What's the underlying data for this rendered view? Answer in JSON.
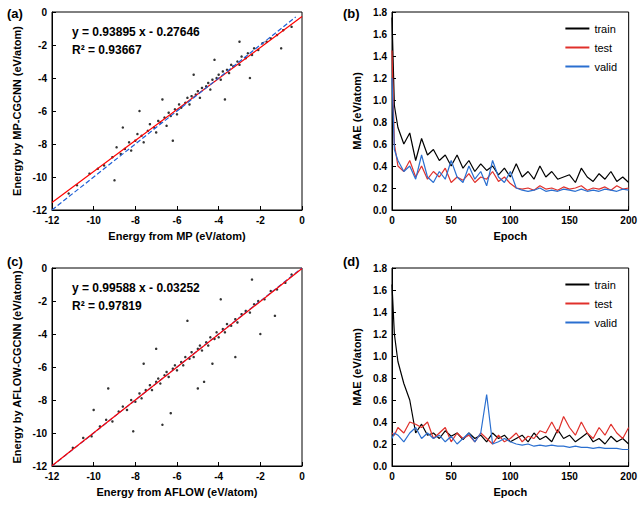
{
  "chart_data": [
    {
      "type": "scatter",
      "title": "(a)",
      "annotations": [
        "y = 0.93895 x - 0.27646",
        "R² = 0.93667"
      ],
      "x_label": "Energy from MP (eV/atom)",
      "y_label": "Energy by MP-CGCNN (eV/atom)",
      "xlim": [
        -12,
        0
      ],
      "ylim": [
        -12,
        0
      ],
      "xticks": [
        -12,
        -10,
        -8,
        -6,
        -4,
        -2,
        0
      ],
      "yticks": [
        -12,
        -10,
        -8,
        -6,
        -4,
        -2,
        0
      ],
      "grid": false,
      "series": [
        {
          "type": "scatter",
          "color": "#000000",
          "marker": "circle",
          "x": [
            -10.2,
            -9.8,
            -9.5,
            -9.1,
            -8.9,
            -8.7,
            -8.5,
            -8.3,
            -8.2,
            -8.0,
            -7.9,
            -7.7,
            -7.6,
            -7.4,
            -7.3,
            -7.1,
            -7.0,
            -6.9,
            -6.8,
            -6.6,
            -6.5,
            -6.4,
            -6.3,
            -6.1,
            -6.0,
            -5.9,
            -5.8,
            -5.6,
            -5.5,
            -5.4,
            -5.3,
            -5.1,
            -5.0,
            -4.9,
            -4.8,
            -4.6,
            -4.5,
            -4.4,
            -4.3,
            -4.1,
            -4.0,
            -3.9,
            -3.8,
            -3.6,
            -3.5,
            -3.4,
            -3.3,
            -3.1,
            -3.0,
            -2.9,
            -2.7,
            -2.6,
            -2.4,
            -2.3,
            -2.1,
            -1.9,
            -1.7,
            -1.5,
            -1.2,
            -0.9,
            -0.5,
            -9.0,
            -7.8,
            -6.2,
            -5.2,
            -3.7,
            -2.5,
            -4.2,
            -8.6,
            -10.8,
            -11.2,
            -1.0,
            -6.7,
            -3.0
          ],
          "values": [
            -9.8,
            -9.5,
            -9.3,
            -8.8,
            -8.2,
            -8.6,
            -8.3,
            -7.9,
            -8.4,
            -7.8,
            -7.4,
            -7.5,
            -7.9,
            -7.2,
            -6.8,
            -7.0,
            -7.3,
            -6.6,
            -6.7,
            -6.4,
            -6.9,
            -6.1,
            -6.3,
            -5.9,
            -6.2,
            -5.6,
            -5.8,
            -5.5,
            -5.2,
            -5.6,
            -5.1,
            -5.0,
            -4.8,
            -5.2,
            -4.6,
            -4.5,
            -4.3,
            -4.7,
            -4.1,
            -4.0,
            -3.8,
            -4.1,
            -3.6,
            -3.5,
            -3.7,
            -3.2,
            -3.3,
            -3.0,
            -3.2,
            -2.7,
            -2.8,
            -2.5,
            -2.6,
            -2.2,
            -2.3,
            -1.9,
            -1.8,
            -1.6,
            -1.4,
            -1.1,
            -0.9,
            -10.2,
            -6.0,
            -7.8,
            -3.8,
            -5.3,
            -4.0,
            -2.9,
            -7.0,
            -10.5,
            -11.0,
            -2.2,
            -5.3,
            -1.8
          ]
        },
        {
          "type": "line",
          "color": "#ff0000",
          "line_style": "solid",
          "x": [
            -12,
            0
          ],
          "values": [
            -11.544,
            -0.276
          ]
        },
        {
          "type": "line",
          "color": "#1f5fd6",
          "line_style": "dashed",
          "x": [
            -12,
            -0.3
          ],
          "values": [
            -12,
            -0.3
          ]
        }
      ]
    },
    {
      "type": "line",
      "title": "(b)",
      "x_label": "Epoch",
      "y_label": "MAE (eV/atom)",
      "xlim": [
        0,
        200
      ],
      "ylim": [
        0,
        1.8
      ],
      "xticks": [
        0,
        50,
        100,
        150,
        200
      ],
      "yticks": [
        {
          "value": 0,
          "label": "0.0"
        },
        0.2,
        0.4,
        0.6,
        0.8,
        {
          "value": 1,
          "label": "1.0"
        },
        1.2,
        1.4,
        1.6,
        1.8
      ],
      "grid": false,
      "legend": "upper right",
      "x": [
        0,
        2,
        5,
        10,
        15,
        20,
        25,
        30,
        35,
        40,
        45,
        50,
        55,
        60,
        65,
        70,
        75,
        80,
        85,
        90,
        95,
        100,
        105,
        110,
        115,
        120,
        125,
        130,
        135,
        140,
        145,
        150,
        155,
        160,
        165,
        170,
        175,
        180,
        185,
        190,
        195,
        200
      ],
      "series": [
        {
          "name": "train",
          "color": "#000000",
          "values": [
            1.75,
            0.95,
            0.75,
            0.6,
            0.7,
            0.45,
            0.65,
            0.5,
            0.55,
            0.45,
            0.5,
            0.4,
            0.5,
            0.38,
            0.45,
            0.35,
            0.42,
            0.36,
            0.4,
            0.32,
            0.38,
            0.3,
            0.42,
            0.3,
            0.35,
            0.28,
            0.4,
            0.3,
            0.35,
            0.28,
            0.3,
            0.32,
            0.25,
            0.38,
            0.3,
            0.26,
            0.33,
            0.28,
            0.35,
            0.26,
            0.3,
            0.25
          ]
        },
        {
          "name": "test",
          "color": "#e0302b",
          "values": [
            1.45,
            0.6,
            0.4,
            0.35,
            0.45,
            0.3,
            0.4,
            0.28,
            0.35,
            0.3,
            0.38,
            0.25,
            0.3,
            0.27,
            0.33,
            0.25,
            0.3,
            0.28,
            0.35,
            0.26,
            0.3,
            0.24,
            0.2,
            0.19,
            0.2,
            0.18,
            0.22,
            0.19,
            0.2,
            0.18,
            0.21,
            0.19,
            0.2,
            0.22,
            0.18,
            0.2,
            0.19,
            0.21,
            0.18,
            0.22,
            0.19,
            0.2
          ]
        },
        {
          "name": "valid",
          "color": "#2a6fd0",
          "values": [
            1.2,
            0.55,
            0.45,
            0.35,
            0.4,
            0.28,
            0.5,
            0.3,
            0.25,
            0.35,
            0.28,
            0.45,
            0.3,
            0.25,
            0.4,
            0.28,
            0.35,
            0.22,
            0.45,
            0.3,
            0.25,
            0.35,
            0.2,
            0.18,
            0.17,
            0.18,
            0.2,
            0.17,
            0.18,
            0.17,
            0.19,
            0.18,
            0.17,
            0.19,
            0.17,
            0.18,
            0.17,
            0.19,
            0.18,
            0.17,
            0.19,
            0.18
          ]
        }
      ]
    },
    {
      "type": "scatter",
      "title": "(c)",
      "annotations": [
        "y = 0.99588 x - 0.03252",
        "R² = 0.97819"
      ],
      "x_label": "Energy from AFLOW (eV/atom)",
      "y_label": "Energy by AFLOW-CGCNN (eV/atom)",
      "xlim": [
        -12,
        0
      ],
      "ylim": [
        -12,
        0
      ],
      "xticks": [
        -12,
        -10,
        -8,
        -6,
        -4,
        -2,
        0
      ],
      "yticks": [
        -12,
        -10,
        -8,
        -6,
        -4,
        -2,
        0
      ],
      "grid": false,
      "series": [
        {
          "type": "scatter",
          "color": "#000000",
          "marker": "circle",
          "x": [
            -11.0,
            -10.5,
            -10.1,
            -9.7,
            -9.4,
            -9.1,
            -8.8,
            -8.6,
            -8.4,
            -8.2,
            -8.0,
            -7.8,
            -7.7,
            -7.5,
            -7.3,
            -7.2,
            -7.0,
            -6.9,
            -6.8,
            -6.6,
            -6.5,
            -6.4,
            -6.2,
            -6.1,
            -6.0,
            -5.8,
            -5.7,
            -5.6,
            -5.4,
            -5.3,
            -5.2,
            -5.0,
            -4.9,
            -4.8,
            -4.6,
            -4.5,
            -4.4,
            -4.2,
            -4.1,
            -4.0,
            -3.8,
            -3.7,
            -3.6,
            -3.4,
            -3.2,
            -3.1,
            -2.9,
            -2.7,
            -2.5,
            -2.3,
            -2.1,
            -1.8,
            -1.5,
            -1.2,
            -0.8,
            -0.5,
            -9.3,
            -8.1,
            -7.0,
            -6.3,
            -5.5,
            -4.7,
            -3.9,
            -3.2,
            -2.4,
            -6.7,
            -5.0,
            -2.0,
            -7.6,
            -1.3,
            -10.0,
            -4.3
          ],
          "values": [
            -10.9,
            -10.3,
            -10.2,
            -9.6,
            -9.2,
            -9.3,
            -8.7,
            -8.4,
            -8.6,
            -8.0,
            -8.1,
            -7.6,
            -7.9,
            -7.4,
            -7.1,
            -7.4,
            -6.9,
            -6.7,
            -7.0,
            -6.5,
            -6.3,
            -6.6,
            -6.1,
            -5.9,
            -6.2,
            -5.7,
            -5.9,
            -5.4,
            -5.5,
            -5.1,
            -5.4,
            -4.9,
            -4.7,
            -5.0,
            -4.5,
            -4.7,
            -4.2,
            -4.3,
            -3.9,
            -4.2,
            -3.7,
            -3.9,
            -3.4,
            -3.5,
            -3.1,
            -3.3,
            -2.8,
            -2.6,
            -2.7,
            -2.2,
            -2.0,
            -1.9,
            -1.4,
            -1.3,
            -0.9,
            -0.4,
            -7.3,
            -9.9,
            -4.9,
            -8.8,
            -3.2,
            -6.9,
            -1.9,
            -5.4,
            -0.7,
            -9.5,
            -7.3,
            -4.0,
            -5.8,
            -2.9,
            -8.6,
            -5.8
          ]
        },
        {
          "type": "line",
          "color": "#1f5fd6",
          "line_style": "dashed",
          "x": [
            -12,
            0
          ],
          "values": [
            -12,
            0
          ]
        },
        {
          "type": "line",
          "color": "#ff0000",
          "line_style": "solid",
          "x": [
            -12,
            0
          ],
          "values": [
            -11.983,
            -0.033
          ]
        }
      ]
    },
    {
      "type": "line",
      "title": "(d)",
      "x_label": "Epoch",
      "y_label": "MAE (eV/atom)",
      "xlim": [
        0,
        200
      ],
      "ylim": [
        0,
        1.8
      ],
      "xticks": [
        0,
        50,
        100,
        150,
        200
      ],
      "yticks": [
        {
          "value": 0,
          "label": "0.0"
        },
        0.2,
        0.4,
        0.6,
        0.8,
        {
          "value": 1,
          "label": "1.0"
        },
        1.2,
        1.4,
        1.6,
        1.8
      ],
      "grid": false,
      "legend": "upper right",
      "x": [
        0,
        2,
        5,
        10,
        15,
        20,
        25,
        30,
        35,
        40,
        45,
        50,
        55,
        60,
        65,
        70,
        75,
        80,
        85,
        90,
        95,
        100,
        105,
        110,
        115,
        120,
        125,
        130,
        135,
        140,
        145,
        150,
        155,
        160,
        165,
        170,
        175,
        180,
        185,
        190,
        195,
        200
      ],
      "series": [
        {
          "name": "train",
          "color": "#000000",
          "values": [
            1.65,
            1.2,
            0.95,
            0.75,
            0.6,
            0.3,
            0.38,
            0.28,
            0.3,
            0.25,
            0.32,
            0.27,
            0.3,
            0.24,
            0.3,
            0.25,
            0.28,
            0.22,
            0.3,
            0.25,
            0.28,
            0.22,
            0.25,
            0.28,
            0.22,
            0.3,
            0.24,
            0.27,
            0.22,
            0.33,
            0.25,
            0.28,
            0.22,
            0.26,
            0.3,
            0.22,
            0.25,
            0.2,
            0.27,
            0.22,
            0.25,
            0.2
          ]
        },
        {
          "name": "test",
          "color": "#e0302b",
          "values": [
            0.3,
            0.28,
            0.35,
            0.3,
            0.4,
            0.38,
            0.35,
            0.4,
            0.25,
            0.3,
            0.35,
            0.22,
            0.3,
            0.25,
            0.28,
            0.22,
            0.3,
            0.25,
            0.2,
            0.28,
            0.22,
            0.25,
            0.3,
            0.22,
            0.27,
            0.25,
            0.32,
            0.3,
            0.4,
            0.3,
            0.45,
            0.35,
            0.28,
            0.4,
            0.3,
            0.25,
            0.35,
            0.28,
            0.38,
            0.3,
            0.25,
            0.35
          ]
        },
        {
          "name": "valid",
          "color": "#2a6fd0",
          "values": [
            0.25,
            0.3,
            0.28,
            0.22,
            0.3,
            0.35,
            0.25,
            0.3,
            0.25,
            0.28,
            0.22,
            0.27,
            0.2,
            0.25,
            0.3,
            0.22,
            0.3,
            0.65,
            0.2,
            0.22,
            0.25,
            0.22,
            0.2,
            0.19,
            0.2,
            0.18,
            0.19,
            0.18,
            0.19,
            0.18,
            0.18,
            0.17,
            0.18,
            0.17,
            0.17,
            0.16,
            0.17,
            0.16,
            0.16,
            0.16,
            0.15,
            0.15
          ]
        }
      ]
    }
  ]
}
